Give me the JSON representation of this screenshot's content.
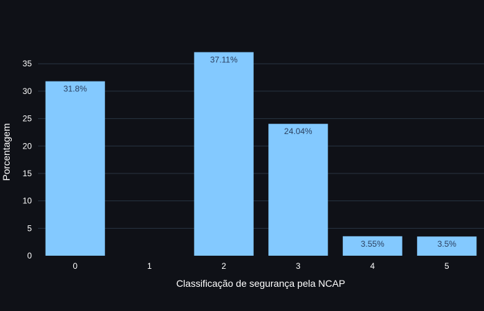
{
  "chart_data": {
    "type": "bar",
    "categories": [
      "0",
      "1",
      "2",
      "3",
      "4",
      "5"
    ],
    "values": [
      31.8,
      0,
      37.11,
      24.04,
      3.55,
      3.5
    ],
    "data_labels": [
      "31.8%",
      "",
      "37.11%",
      "24.04%",
      "3.55%",
      "3.5%"
    ],
    "title": "",
    "xlabel": "Classificação de segurança pela NCAP",
    "ylabel": "Porcentagem",
    "ylim": [
      0,
      39.06
    ],
    "yticks": [
      0,
      5,
      10,
      15,
      20,
      25,
      30,
      35
    ],
    "ytick_labels": [
      "0",
      "5",
      "10",
      "15",
      "20",
      "25",
      "30",
      "35"
    ],
    "grid": true,
    "colors": {
      "background": "#0f1117",
      "bar": "#83c9ff",
      "gridline": "#283442",
      "text": "#ffffff",
      "bar_label": "#2a3f5f"
    }
  }
}
